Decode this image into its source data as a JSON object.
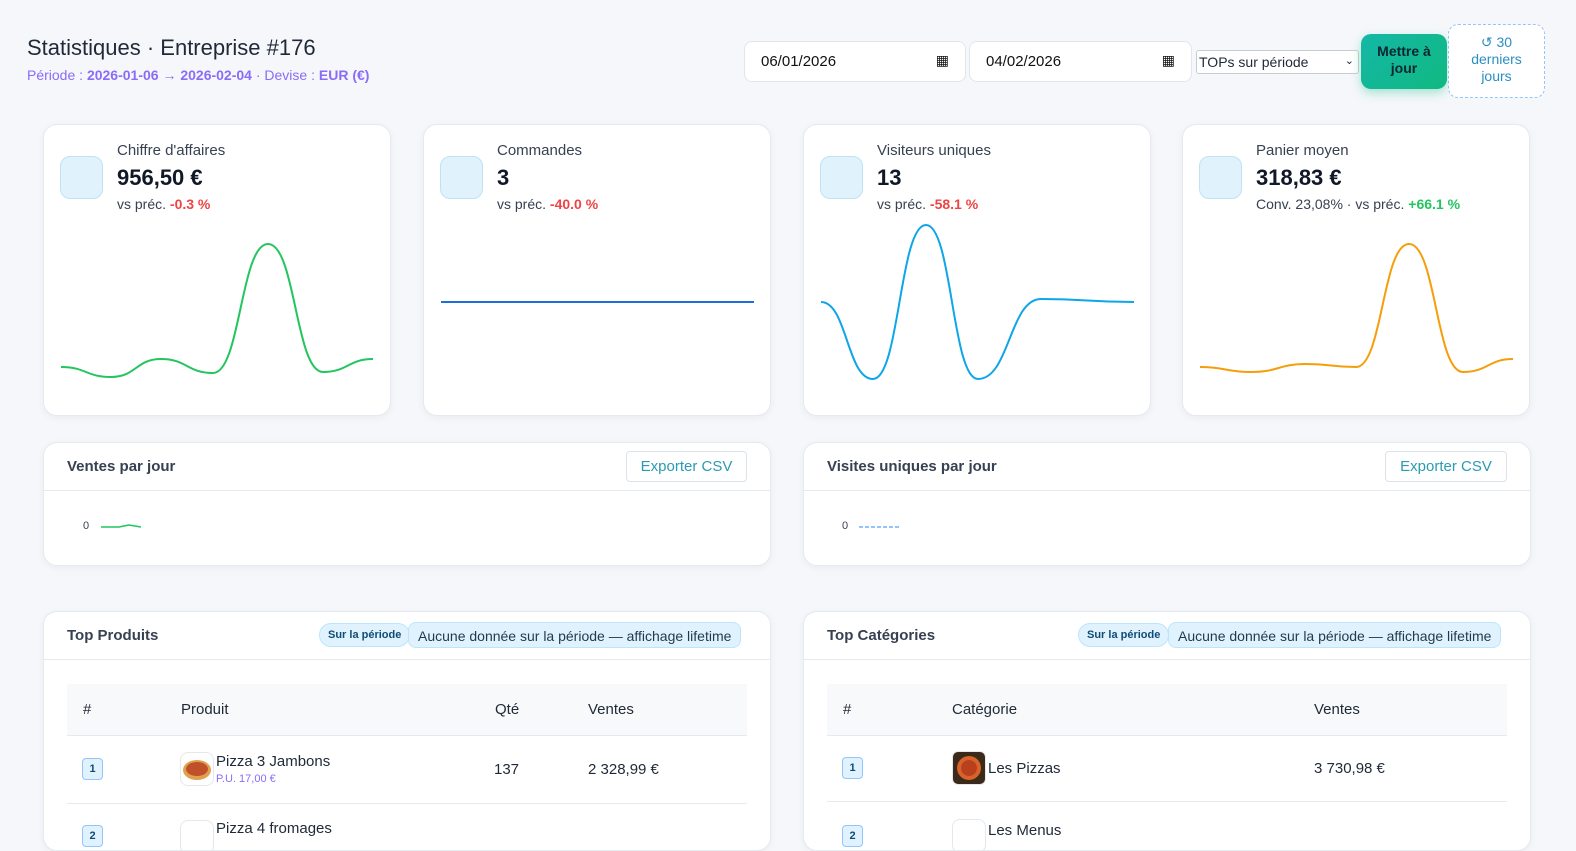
{
  "header": {
    "title": "Statistiques · Entreprise #176",
    "period_label": "Période :",
    "period_start": "2026-01-06",
    "arrow": "→",
    "period_end": "2026-02-04",
    "currency_label": "· Devise :",
    "currency": "EUR (€)"
  },
  "filters": {
    "start_date": "06/01/2026",
    "end_date": "04/02/2026",
    "tops_select": "TOPs sur période",
    "update_button": "Mettre à jour",
    "reset_button": "↺ 30 derniers jours"
  },
  "kpis": [
    {
      "label": "Chiffre d'affaires",
      "value": "956,50 €",
      "compare_label": "vs préc.",
      "delta": "-0.3 %",
      "delta_tone": "negative",
      "color": "#22c55e"
    },
    {
      "label": "Commandes",
      "value": "3",
      "compare_label": "vs préc.",
      "delta": "-40.0 %",
      "delta_tone": "negative",
      "color": "#1e6fd9"
    },
    {
      "label": "Visiteurs uniques",
      "value": "13",
      "compare_label": "vs préc.",
      "delta": "-58.1 %",
      "delta_tone": "negative",
      "color": "#0ea5e9"
    },
    {
      "label": "Panier moyen",
      "value": "318,83 €",
      "compare_label": "Conv. 23,08% · vs préc.",
      "delta": "+66.1 %",
      "delta_tone": "positive",
      "color": "#f59e0b"
    }
  ],
  "daily_charts": [
    {
      "title": "Ventes par jour",
      "export_button": "Exporter CSV",
      "y_tick": "0",
      "color": "#22c55e"
    },
    {
      "title": "Visites uniques par jour",
      "export_button": "Exporter CSV",
      "y_tick": "0",
      "color": "#93c5fd"
    }
  ],
  "top_products": {
    "title": "Top Produits",
    "badge": "Sur la période",
    "notice": "Aucune donnée sur la période — affichage lifetime",
    "columns": [
      "#",
      "Produit",
      "Qté",
      "Ventes"
    ],
    "rows": [
      {
        "rank": "1",
        "name": "Pizza 3 Jambons",
        "unit_price": "P.U. 17,00 €",
        "qty": "137",
        "sales": "2 328,99 €"
      },
      {
        "rank": "2",
        "name": "Pizza 4 fromages"
      }
    ]
  },
  "top_categories": {
    "title": "Top Catégories",
    "badge": "Sur la période",
    "notice": "Aucune donnée sur la période — affichage lifetime",
    "columns": [
      "#",
      "Catégorie",
      "Ventes"
    ],
    "rows": [
      {
        "rank": "1",
        "name": "Les Pizzas",
        "sales": "3 730,98 €"
      },
      {
        "rank": "2",
        "name": "Les Menus"
      }
    ]
  }
}
